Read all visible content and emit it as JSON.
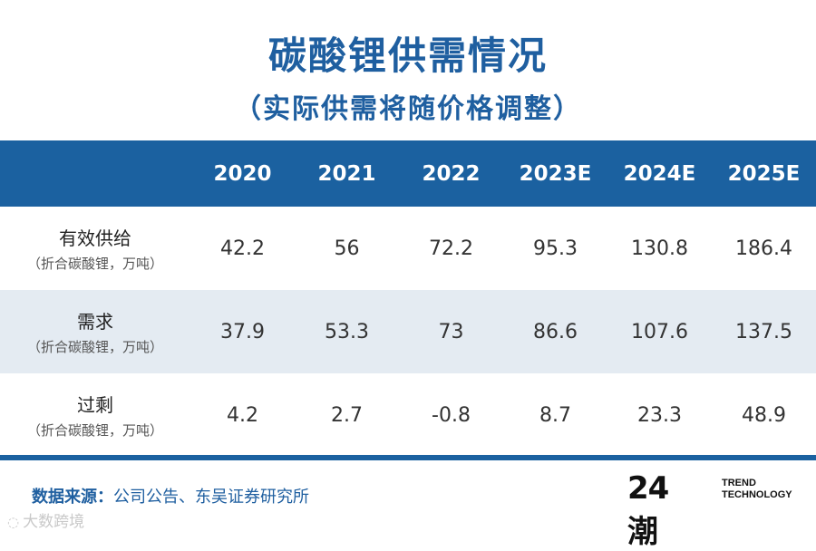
{
  "title": "碳酸锂供需情况",
  "subtitle": "（实际供需将随价格调整）",
  "chart_data": {
    "type": "table",
    "columns": [
      "2020",
      "2021",
      "2022",
      "2023E",
      "2024E",
      "2025E"
    ],
    "rows": [
      {
        "label": "有效供给",
        "unit": "（折合碳酸锂，万吨）",
        "values": [
          "42.2",
          "56",
          "72.2",
          "95.3",
          "130.8",
          "186.4"
        ]
      },
      {
        "label": "需求",
        "unit": "（折合碳酸锂，万吨）",
        "values": [
          "37.9",
          "53.3",
          "73",
          "86.6",
          "107.6",
          "137.5"
        ]
      },
      {
        "label": "过剩",
        "unit": "（折合碳酸锂，万吨）",
        "values": [
          "4.2",
          "2.7",
          "-0.8",
          "8.7",
          "23.3",
          "48.9"
        ]
      }
    ]
  },
  "source": {
    "label": "数据来源：",
    "text": "公司公告、东吴证券研究所"
  },
  "logo": {
    "number": "24潮",
    "line1": "TREND",
    "line2": "TECHNOLOGY"
  },
  "watermark": {
    "text": "大数跨境"
  },
  "colors": {
    "header": "#1b61a0",
    "alt_row": "#e4ebf2",
    "negative": "#d9461f"
  }
}
